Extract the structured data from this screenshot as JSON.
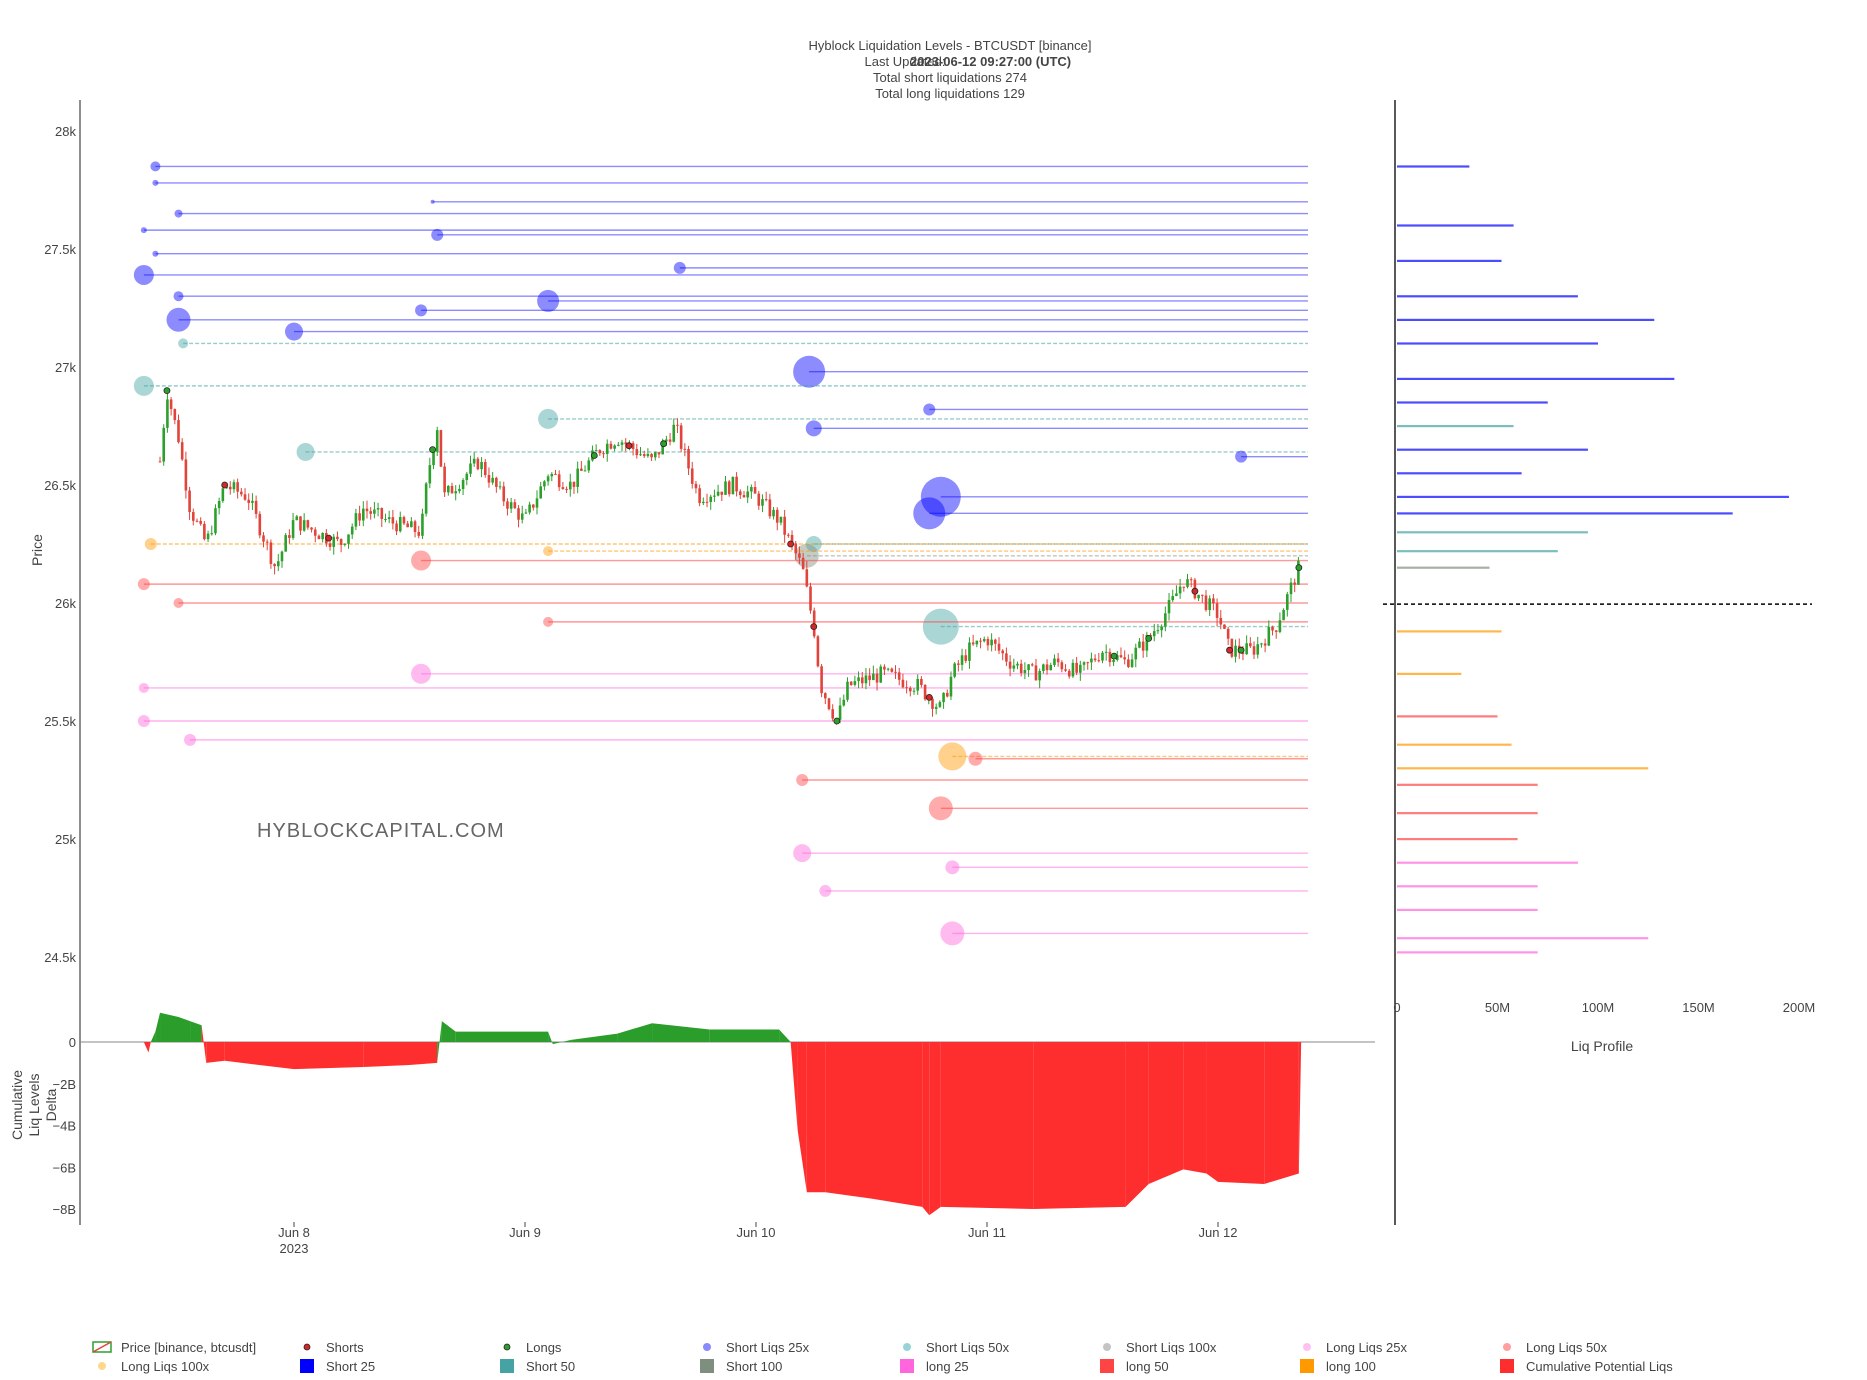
{
  "header": {
    "title": "Hyblock Liquidation Levels - BTCUSDT [binance]",
    "updated_label": "Last Updated:",
    "updated_value": "2023-06-12 09:27:00 (UTC)",
    "shorts_line": "Total short liquidations 274",
    "longs_line": "Total long liquidations 129"
  },
  "watermark": "HYBLOCKCAPITAL.COM",
  "colors": {
    "short25": "#0000ff",
    "short50": "#45a3a3",
    "short100": "#7f8f7f",
    "long25": "#ff66dd",
    "long50": "#ff4444",
    "long100": "#ff9900",
    "candle_up": "#2ca02c",
    "candle_down": "#e0443a",
    "delta_pos": "#2a9d2a",
    "delta_neg": "#ff2e2e"
  },
  "chart_data": [
    {
      "type": "candlestick",
      "panel": "price",
      "title": "Hyblock Liquidation Levels - BTCUSDT [binance]",
      "ylabel": "Price",
      "ylim": [
        24350,
        28100
      ],
      "y_ticks": [
        "28k",
        "27.5k",
        "27k",
        "26.5k",
        "26k",
        "25.5k",
        "25k",
        "24.5k"
      ],
      "x_ticks": [
        "Jun 8",
        "Jun 9",
        "Jun 10",
        "Jun 11",
        "Jun 12"
      ],
      "x_year_label": "2023",
      "price_path": [
        [
          7.42,
          26600
        ],
        [
          7.45,
          26900
        ],
        [
          7.5,
          26700
        ],
        [
          7.55,
          26400
        ],
        [
          7.62,
          26250
        ],
        [
          7.7,
          26500
        ],
        [
          7.8,
          26450
        ],
        [
          7.92,
          26150
        ],
        [
          8.0,
          26350
        ],
        [
          8.1,
          26300
        ],
        [
          8.2,
          26250
        ],
        [
          8.3,
          26400
        ],
        [
          8.4,
          26350
        ],
        [
          8.55,
          26300
        ],
        [
          8.58,
          26550
        ],
        [
          8.62,
          26750
        ],
        [
          8.65,
          26450
        ],
        [
          8.8,
          26600
        ],
        [
          8.9,
          26450
        ],
        [
          9.0,
          26350
        ],
        [
          9.1,
          26550
        ],
        [
          9.2,
          26500
        ],
        [
          9.32,
          26650
        ],
        [
          9.4,
          26700
        ],
        [
          9.55,
          26600
        ],
        [
          9.65,
          26750
        ],
        [
          9.75,
          26450
        ],
        [
          9.9,
          26500
        ],
        [
          10.0,
          26450
        ],
        [
          10.1,
          26350
        ],
        [
          10.15,
          26250
        ],
        [
          10.2,
          26150
        ],
        [
          10.25,
          25900
        ],
        [
          10.28,
          25650
        ],
        [
          10.35,
          25500
        ],
        [
          10.4,
          25650
        ],
        [
          10.55,
          25700
        ],
        [
          10.7,
          25650
        ],
        [
          10.8,
          25550
        ],
        [
          10.85,
          25700
        ],
        [
          10.92,
          25800
        ],
        [
          11.0,
          25850
        ],
        [
          11.1,
          25750
        ],
        [
          11.2,
          25700
        ],
        [
          11.3,
          25750
        ],
        [
          11.4,
          25700
        ],
        [
          11.5,
          25800
        ],
        [
          11.6,
          25750
        ],
        [
          11.7,
          25850
        ],
        [
          11.8,
          26000
        ],
        [
          11.85,
          26100
        ],
        [
          11.9,
          26050
        ],
        [
          12.0,
          25950
        ],
        [
          12.05,
          25800
        ],
        [
          12.15,
          25800
        ],
        [
          12.25,
          25900
        ],
        [
          12.35,
          26150
        ]
      ],
      "x_range_days": [
        7.05,
        12.7
      ],
      "shorts_marks_day": [
        7.7,
        8.15,
        9.45,
        10.15,
        10.25,
        10.75,
        11.9,
        12.05
      ],
      "longs_marks_day": [
        7.45,
        8.6,
        9.3,
        9.6,
        10.35,
        11.55,
        11.7,
        12.1,
        12.35
      ],
      "liq_levels": [
        {
          "price": 27850,
          "kind": "short25",
          "start_day": 7.4,
          "size": 5
        },
        {
          "price": 27780,
          "kind": "short25",
          "start_day": 7.4,
          "size": 3
        },
        {
          "price": 27700,
          "kind": "short25",
          "start_day": 8.6,
          "size": 2
        },
        {
          "price": 27650,
          "kind": "short25",
          "start_day": 7.5,
          "size": 4
        },
        {
          "price": 27580,
          "kind": "short25",
          "start_day": 7.35,
          "size": 3
        },
        {
          "price": 27560,
          "kind": "short25",
          "start_day": 8.62,
          "size": 6
        },
        {
          "price": 27480,
          "kind": "short25",
          "start_day": 7.4,
          "size": 3
        },
        {
          "price": 27420,
          "kind": "short25",
          "start_day": 9.67,
          "size": 6
        },
        {
          "price": 27390,
          "kind": "short25",
          "start_day": 7.35,
          "size": 10
        },
        {
          "price": 27300,
          "kind": "short25",
          "start_day": 7.5,
          "size": 5
        },
        {
          "price": 27280,
          "kind": "short25",
          "start_day": 9.1,
          "size": 11
        },
        {
          "price": 27240,
          "kind": "short25",
          "start_day": 8.55,
          "size": 6
        },
        {
          "price": 27200,
          "kind": "short25",
          "start_day": 7.5,
          "size": 12
        },
        {
          "price": 27150,
          "kind": "short25",
          "start_day": 8.0,
          "size": 9
        },
        {
          "price": 27100,
          "kind": "short50",
          "start_day": 7.52,
          "size": 5
        },
        {
          "price": 26980,
          "kind": "short25",
          "start_day": 10.23,
          "size": 16
        },
        {
          "price": 26920,
          "kind": "short50",
          "start_day": 7.35,
          "size": 10
        },
        {
          "price": 26820,
          "kind": "short25",
          "start_day": 10.75,
          "size": 6
        },
        {
          "price": 26780,
          "kind": "short50",
          "start_day": 9.1,
          "size": 10
        },
        {
          "price": 26740,
          "kind": "short25",
          "start_day": 10.25,
          "size": 8
        },
        {
          "price": 26640,
          "kind": "short50",
          "start_day": 8.05,
          "size": 9
        },
        {
          "price": 26620,
          "kind": "short25",
          "start_day": 12.1,
          "size": 6
        },
        {
          "price": 26450,
          "kind": "short25",
          "start_day": 10.8,
          "size": 20
        },
        {
          "price": 26380,
          "kind": "short25",
          "start_day": 10.75,
          "size": 16
        },
        {
          "price": 26250,
          "kind": "short50",
          "start_day": 10.25,
          "size": 8
        },
        {
          "price": 26200,
          "kind": "short100",
          "start_day": 10.22,
          "size": 12
        },
        {
          "price": 25900,
          "kind": "short50",
          "start_day": 10.8,
          "size": 18
        },
        {
          "price": 26080,
          "kind": "long50",
          "start_day": 7.35,
          "size": 6
        },
        {
          "price": 26000,
          "kind": "long50",
          "start_day": 7.5,
          "size": 5
        },
        {
          "price": 26180,
          "kind": "long50",
          "start_day": 8.55,
          "size": 10
        },
        {
          "price": 26220,
          "kind": "long100",
          "start_day": 9.1,
          "size": 5
        },
        {
          "price": 26250,
          "kind": "long100",
          "start_day": 7.38,
          "size": 6
        },
        {
          "price": 25920,
          "kind": "long50",
          "start_day": 9.1,
          "size": 5
        },
        {
          "price": 25700,
          "kind": "long25",
          "start_day": 8.55,
          "size": 10
        },
        {
          "price": 25640,
          "kind": "long25",
          "start_day": 7.35,
          "size": 5
        },
        {
          "price": 25500,
          "kind": "long25",
          "start_day": 7.35,
          "size": 6
        },
        {
          "price": 25420,
          "kind": "long25",
          "start_day": 7.55,
          "size": 6
        },
        {
          "price": 25350,
          "kind": "long100",
          "start_day": 10.85,
          "size": 14
        },
        {
          "price": 25340,
          "kind": "long50",
          "start_day": 10.95,
          "size": 7
        },
        {
          "price": 25250,
          "kind": "long50",
          "start_day": 10.2,
          "size": 6
        },
        {
          "price": 25130,
          "kind": "long50",
          "start_day": 10.8,
          "size": 12
        },
        {
          "price": 24940,
          "kind": "long25",
          "start_day": 10.2,
          "size": 9
        },
        {
          "price": 24880,
          "kind": "long25",
          "start_day": 10.85,
          "size": 7
        },
        {
          "price": 24780,
          "kind": "long25",
          "start_day": 10.3,
          "size": 6
        },
        {
          "price": 24600,
          "kind": "long25",
          "start_day": 10.85,
          "size": 12
        }
      ]
    },
    {
      "type": "area",
      "panel": "delta",
      "ylabel": "Cumulative Liq Levels Delta",
      "y_ticks": [
        "0",
        "−2B",
        "−4B",
        "−6B",
        "−8B"
      ],
      "ylim": [
        -8.2,
        1.5
      ],
      "unit": "B",
      "points": [
        [
          7.35,
          0
        ],
        [
          7.37,
          -0.5
        ],
        [
          7.38,
          0
        ],
        [
          7.4,
          0.5
        ],
        [
          7.42,
          1.4
        ],
        [
          7.5,
          1.2
        ],
        [
          7.55,
          1.0
        ],
        [
          7.6,
          0.8
        ],
        [
          7.62,
          -1.0
        ],
        [
          7.7,
          -0.9
        ],
        [
          8.0,
          -1.3
        ],
        [
          8.3,
          -1.2
        ],
        [
          8.5,
          -1.1
        ],
        [
          8.62,
          -1.0
        ],
        [
          8.64,
          1.0
        ],
        [
          8.7,
          0.5
        ],
        [
          9.1,
          0.5
        ],
        [
          9.12,
          -0.1
        ],
        [
          9.2,
          0.1
        ],
        [
          9.4,
          0.4
        ],
        [
          9.55,
          0.9
        ],
        [
          9.8,
          0.6
        ],
        [
          10.1,
          0.6
        ],
        [
          10.15,
          0
        ],
        [
          10.18,
          -4.2
        ],
        [
          10.22,
          -7.2
        ],
        [
          10.3,
          -7.2
        ],
        [
          10.5,
          -7.5
        ],
        [
          10.72,
          -7.9
        ],
        [
          10.75,
          -8.3
        ],
        [
          10.8,
          -7.9
        ],
        [
          11.2,
          -8.0
        ],
        [
          11.6,
          -7.9
        ],
        [
          11.7,
          -6.8
        ],
        [
          11.85,
          -6.1
        ],
        [
          11.95,
          -6.3
        ],
        [
          12.0,
          -6.7
        ],
        [
          12.2,
          -6.8
        ],
        [
          12.35,
          -6.3
        ],
        [
          12.36,
          0
        ]
      ]
    },
    {
      "type": "bar",
      "panel": "liq_profile",
      "orientation": "horizontal",
      "xlabel": "Liq Profile",
      "x_ticks": [
        "0",
        "50M",
        "100M",
        "150M",
        "200M"
      ],
      "xlim": [
        0,
        210
      ],
      "unit": "M",
      "current_price": 25995,
      "bars": [
        {
          "price": 27850,
          "short25": 36
        },
        {
          "price": 27600,
          "short25": 58
        },
        {
          "price": 27450,
          "short25": 52
        },
        {
          "price": 27300,
          "short25": 90
        },
        {
          "price": 27200,
          "short25": 128
        },
        {
          "price": 27100,
          "short25": 100
        },
        {
          "price": 26950,
          "short25": 138
        },
        {
          "price": 26850,
          "short25": 75
        },
        {
          "price": 26750,
          "short50": 58
        },
        {
          "price": 26650,
          "short25": 95
        },
        {
          "price": 26550,
          "short25": 62
        },
        {
          "price": 26450,
          "short25": 195
        },
        {
          "price": 26380,
          "short25": 167
        },
        {
          "price": 26300,
          "short50": 95
        },
        {
          "price": 26220,
          "short50": 80
        },
        {
          "price": 26150,
          "short100": 46
        },
        {
          "price": 25880,
          "long100": 52
        },
        {
          "price": 25700,
          "long100": 32
        },
        {
          "price": 25520,
          "long50": 50
        },
        {
          "price": 25400,
          "long100": 57
        },
        {
          "price": 25300,
          "long100": 125
        },
        {
          "price": 25230,
          "long50": 70
        },
        {
          "price": 25110,
          "long50": 70
        },
        {
          "price": 25000,
          "long50": 60
        },
        {
          "price": 24900,
          "long25": 90
        },
        {
          "price": 24800,
          "long25": 70
        },
        {
          "price": 24700,
          "long25": 70
        },
        {
          "price": 24580,
          "long25": 125
        },
        {
          "price": 24520,
          "long25": 70
        }
      ]
    }
  ],
  "legend": {
    "items": [
      {
        "label": "Price [binance, btcusdt]",
        "symbol": "candle",
        "color": "#2ca02c"
      },
      {
        "label": "Shorts",
        "symbol": "dot",
        "color": "#d62728"
      },
      {
        "label": "Longs",
        "symbol": "dot",
        "color": "#2ca02c"
      },
      {
        "label": "Short Liqs 25x",
        "symbol": "circle",
        "color": "#8a8aff"
      },
      {
        "label": "Short Liqs 50x",
        "symbol": "circle",
        "color": "#99d4d4"
      },
      {
        "label": "Short Liqs 100x",
        "symbol": "circle",
        "color": "#c4c4c4"
      },
      {
        "label": "Long Liqs 25x",
        "symbol": "circle",
        "color": "#ffc2ef"
      },
      {
        "label": "Long Liqs 50x",
        "symbol": "circle",
        "color": "#ff9f9f"
      },
      {
        "label": "Long Liqs 100x",
        "symbol": "circle",
        "color": "#ffd98a"
      },
      {
        "label": "Short 25",
        "symbol": "square",
        "color": "#0000ff"
      },
      {
        "label": "Short 50",
        "symbol": "square",
        "color": "#45a3a3"
      },
      {
        "label": "Short 100",
        "symbol": "square",
        "color": "#7f8f7f"
      },
      {
        "label": "long 25",
        "symbol": "square",
        "color": "#ff66dd"
      },
      {
        "label": "long 50",
        "symbol": "square",
        "color": "#ff4444"
      },
      {
        "label": "long 100",
        "symbol": "square",
        "color": "#ff9900"
      },
      {
        "label": "Cumulative Potential Liqs",
        "symbol": "square",
        "color": "#ff2e2e"
      }
    ]
  }
}
